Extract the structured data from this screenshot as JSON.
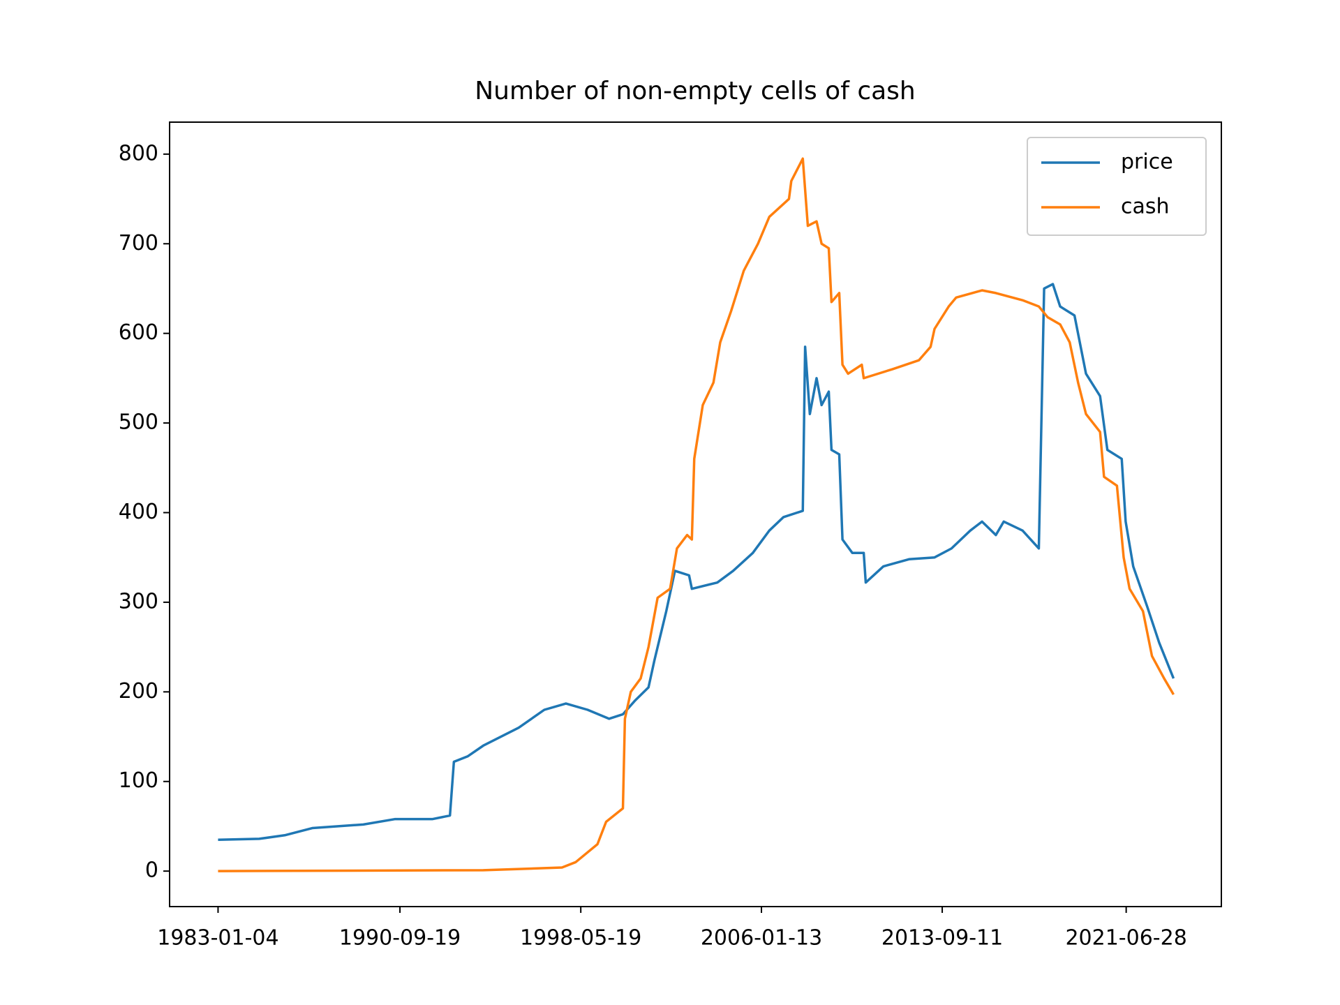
{
  "chart_data": {
    "type": "line",
    "title": "Number of non-empty cells of cash",
    "xlim": [
      "1980-12-15",
      "2025-07-10"
    ],
    "xticks": [
      "1983-01-04",
      "1990-09-19",
      "1998-05-19",
      "2006-01-13",
      "2013-09-11",
      "2021-06-28"
    ],
    "ylim": [
      -39.6,
      835.7
    ],
    "yticks": [
      0,
      100,
      200,
      300,
      400,
      500,
      600,
      700,
      800
    ],
    "legend": "upper right",
    "series": [
      {
        "name": "price",
        "color": "#1f77b4",
        "x": [
          "1983-01-04",
          "1984-10-01",
          "1985-11-01",
          "1987-01-01",
          "1989-03-01",
          "1990-07-01",
          "1992-02-01",
          "1992-11-01",
          "1993-01-01",
          "1993-08-01",
          "1994-04-01",
          "1995-10-01",
          "1996-11-01",
          "1997-10-01",
          "1998-09-01",
          "1999-08-01",
          "2000-03-01",
          "2000-09-01",
          "2001-04-01",
          "2001-07-01",
          "2002-01-01",
          "2002-05-15",
          "2002-12-20",
          "2003-02-01",
          "2004-03-01",
          "2004-11-01",
          "2005-09-01",
          "2006-05-15",
          "2006-12-20",
          "2007-10-15",
          "2007-11-20",
          "2008-02-01",
          "2008-05-15",
          "2008-08-01",
          "2008-11-20",
          "2009-01-01",
          "2009-05-01",
          "2009-06-20",
          "2009-11-20",
          "2010-05-15",
          "2010-06-15",
          "2011-03-15",
          "2012-04-15",
          "2013-05-15",
          "2014-02-01",
          "2014-11-20",
          "2015-05-20",
          "2015-12-20",
          "2016-04-20",
          "2017-02-05",
          "2017-10-15",
          "2018-01-05",
          "2018-05-20",
          "2018-09-10",
          "2019-04-20",
          "2019-10-15",
          "2020-05-20",
          "2020-09-10",
          "2021-04-20",
          "2021-06-20",
          "2021-10-15",
          "2022-05-20",
          "2022-11-20",
          "2023-07-01"
        ],
        "values": [
          35,
          36,
          40,
          48,
          52,
          58,
          58,
          62,
          122,
          128,
          140,
          160,
          180,
          187,
          180,
          170,
          175,
          190,
          205,
          235,
          290,
          335,
          330,
          315,
          322,
          335,
          355,
          380,
          395,
          402,
          585,
          510,
          550,
          520,
          535,
          470,
          465,
          370,
          355,
          355,
          322,
          340,
          348,
          350,
          360,
          380,
          390,
          375,
          390,
          380,
          360,
          650,
          655,
          630,
          620,
          555,
          530,
          470,
          460,
          390,
          340,
          295,
          255,
          215
        ]
      },
      {
        "name": "cash",
        "color": "#ff7f0e",
        "x": [
          "1983-01-04",
          "1994-04-01",
          "1997-08-01",
          "1998-03-01",
          "1999-02-01",
          "1999-06-15",
          "2000-03-01",
          "2000-04-01",
          "2000-07-01",
          "2000-12-01",
          "2001-04-01",
          "2001-08-20",
          "2002-03-01",
          "2002-06-15",
          "2002-11-20",
          "2003-02-01",
          "2003-03-10",
          "2003-07-20",
          "2004-01-01",
          "2004-04-15",
          "2004-10-01",
          "2005-04-15",
          "2005-11-20",
          "2006-05-15",
          "2007-03-15",
          "2007-04-20",
          "2007-10-15",
          "2008-01-01",
          "2008-05-15",
          "2008-08-01",
          "2008-11-20",
          "2009-01-01",
          "2009-05-01",
          "2009-06-20",
          "2009-09-15",
          "2010-04-15",
          "2010-05-15",
          "2011-08-01",
          "2012-09-15",
          "2013-03-15",
          "2013-05-15",
          "2013-12-20",
          "2014-04-15",
          "2015-05-20",
          "2015-12-20",
          "2017-02-05",
          "2017-10-15",
          "2018-03-01",
          "2018-09-10",
          "2019-02-05",
          "2019-06-15",
          "2019-10-15",
          "2020-05-20",
          "2020-07-20",
          "2021-02-05",
          "2021-05-20",
          "2021-08-20",
          "2022-03-15",
          "2022-08-01",
          "2023-02-05",
          "2023-07-01"
        ],
        "values": [
          0,
          1,
          4,
          10,
          30,
          55,
          70,
          170,
          200,
          215,
          250,
          305,
          315,
          360,
          375,
          370,
          460,
          520,
          545,
          590,
          625,
          670,
          700,
          730,
          750,
          770,
          795,
          720,
          725,
          700,
          695,
          635,
          645,
          565,
          555,
          565,
          550,
          560,
          570,
          585,
          605,
          630,
          640,
          648,
          645,
          637,
          630,
          618,
          610,
          590,
          545,
          510,
          490,
          440,
          430,
          350,
          315,
          290,
          240,
          215,
          197
        ]
      }
    ]
  }
}
